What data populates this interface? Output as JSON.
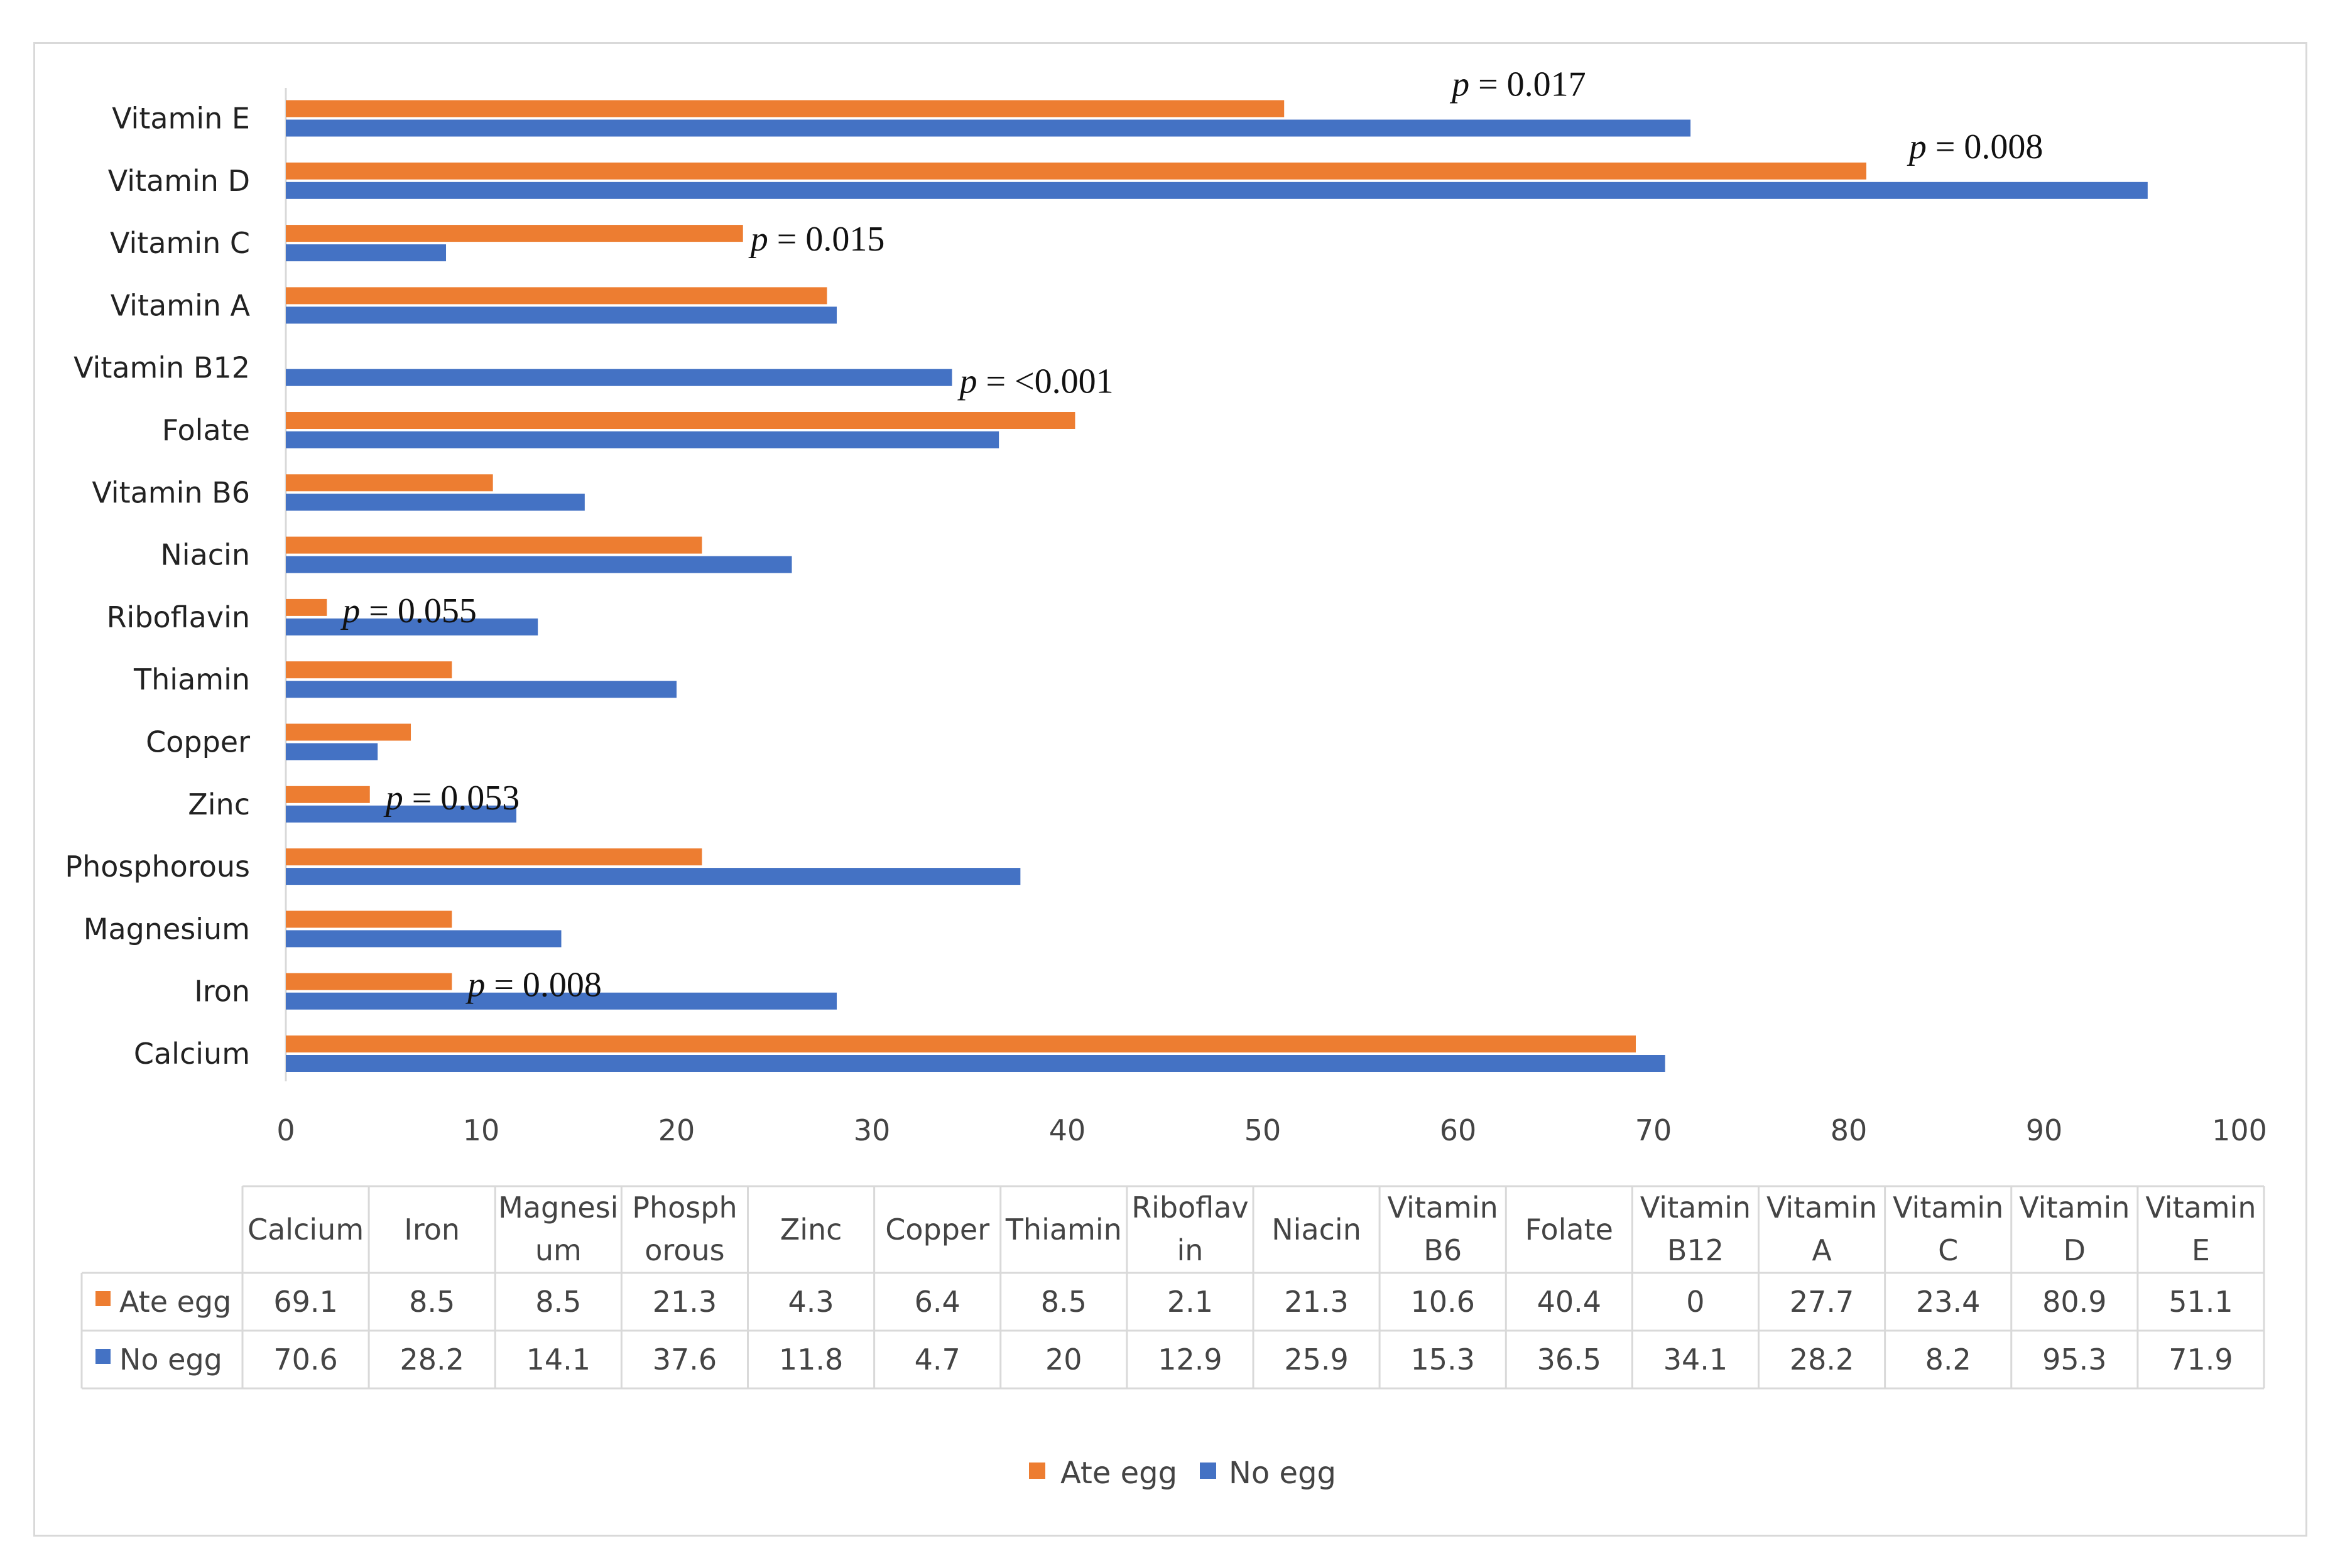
{
  "chart_data": {
    "type": "bar",
    "orientation": "horizontal",
    "categories": [
      "Calcium",
      "Iron",
      "Magnesium",
      "Phosphorous",
      "Zinc",
      "Copper",
      "Thiamin",
      "Riboflavin",
      "Niacin",
      "Vitamin B6",
      "Folate",
      "Vitamin B12",
      "Vitamin A",
      "Vitamin C",
      "Vitamin D",
      "Vitamin E"
    ],
    "series": [
      {
        "name": "Ate egg",
        "color": "#ed7d31",
        "values": [
          69.1,
          8.5,
          8.5,
          21.3,
          4.3,
          6.4,
          8.5,
          2.1,
          21.3,
          10.6,
          40.4,
          0,
          27.7,
          23.4,
          80.9,
          51.1
        ]
      },
      {
        "name": "No egg",
        "color": "#4472c4",
        "values": [
          70.6,
          28.2,
          14.1,
          37.6,
          11.8,
          4.7,
          20,
          12.9,
          25.9,
          15.3,
          36.5,
          34.1,
          28.2,
          8.2,
          95.3,
          71.9
        ]
      }
    ],
    "xlim": [
      0,
      100
    ],
    "xticks": [
      0,
      10,
      20,
      30,
      40,
      50,
      60,
      70,
      80,
      90,
      100
    ],
    "grid": false,
    "legend": "bottom-center",
    "annotations": [
      {
        "category": "Vitamin E",
        "p": "p",
        "rest": " = 0.017"
      },
      {
        "category": "Vitamin D",
        "p": "p",
        "rest": " = 0.008"
      },
      {
        "category": "Vitamin C",
        "p": "p",
        "rest": " = 0.015"
      },
      {
        "category": "Vitamin B12",
        "p": "p",
        "rest": " = <0.001"
      },
      {
        "category": "Riboflavin",
        "p": "p",
        "rest": " = 0.055"
      },
      {
        "category": "Zinc",
        "p": "p",
        "rest": " = 0.053"
      },
      {
        "category": "Iron",
        "p": "p",
        "rest": " = 0.008"
      }
    ],
    "data_table": {
      "header_lines": [
        [
          "Calcium"
        ],
        [
          "Iron"
        ],
        [
          "Magnesi",
          "um"
        ],
        [
          "Phosph",
          "orous"
        ],
        [
          "Zinc"
        ],
        [
          "Copper"
        ],
        [
          "Thiamin"
        ],
        [
          "Riboflav",
          "in"
        ],
        [
          "Niacin"
        ],
        [
          "Vitamin",
          "B6"
        ],
        [
          "Folate"
        ],
        [
          "Vitamin",
          "B12"
        ],
        [
          "Vitamin",
          "A"
        ],
        [
          "Vitamin",
          "C"
        ],
        [
          "Vitamin",
          "D"
        ],
        [
          "Vitamin",
          "E"
        ]
      ],
      "rows": [
        {
          "label": "Ate egg",
          "color": "#ed7d31",
          "values": [
            "69.1",
            "8.5",
            "8.5",
            "21.3",
            "4.3",
            "6.4",
            "8.5",
            "2.1",
            "21.3",
            "10.6",
            "40.4",
            "0",
            "27.7",
            "23.4",
            "80.9",
            "51.1"
          ]
        },
        {
          "label": "No egg",
          "color": "#4472c4",
          "values": [
            "70.6",
            "28.2",
            "14.1",
            "37.6",
            "11.8",
            "4.7",
            "20",
            "12.9",
            "25.9",
            "15.3",
            "36.5",
            "34.1",
            "28.2",
            "8.2",
            "95.3",
            "71.9"
          ]
        }
      ]
    }
  }
}
